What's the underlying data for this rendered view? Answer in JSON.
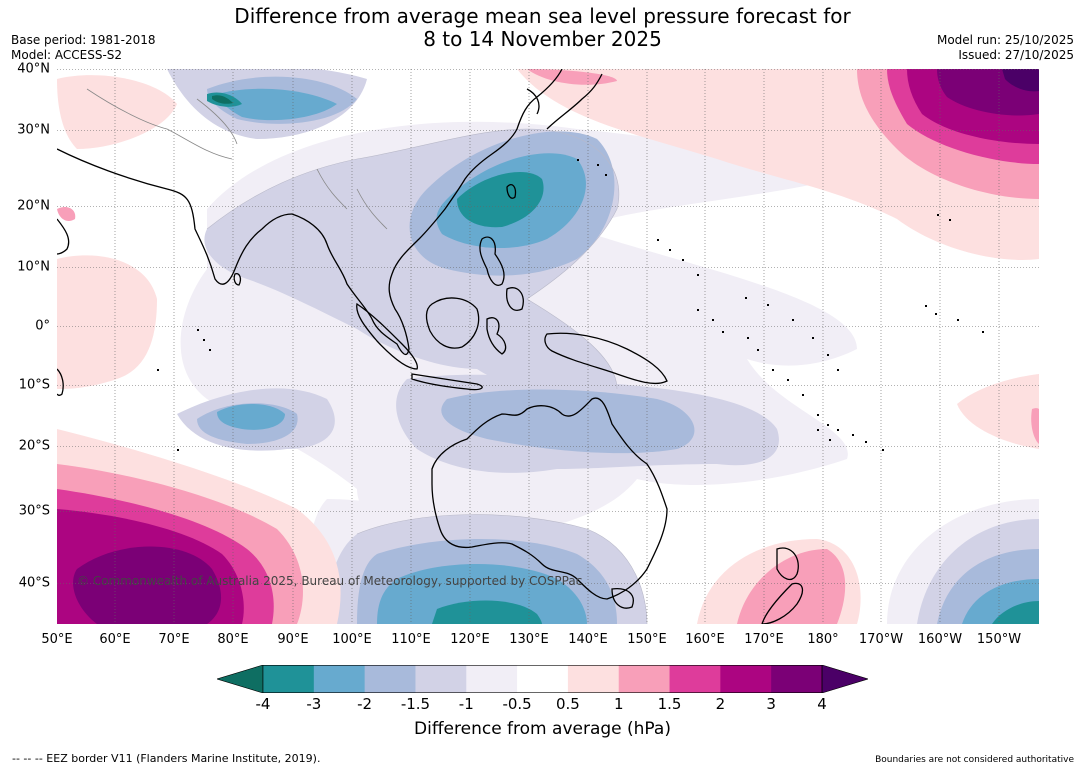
{
  "title": {
    "line1": "Difference from average mean sea level pressure forecast for",
    "line2": "8 to 14 November 2025"
  },
  "meta_left": {
    "base_period": "Base period: 1981-2018",
    "model": "Model: ACCESS-S2"
  },
  "meta_right": {
    "model_run": "Model run: 25/10/2025",
    "issued": "Issued: 27/10/2025"
  },
  "map": {
    "lon_labels": [
      "50°E",
      "60°E",
      "70°E",
      "80°E",
      "90°E",
      "100°E",
      "110°E",
      "120°E",
      "130°E",
      "140°E",
      "150°E",
      "160°E",
      "170°E",
      "180°",
      "170°W",
      "160°W",
      "150°W"
    ],
    "lat_labels": [
      "40°N",
      "30°N",
      "20°N",
      "10°N",
      "0°",
      "10°S",
      "20°S",
      "30°S",
      "40°S"
    ],
    "watermark": "© Commonwealth of Australia 2025, Bureau of Meteorology, supported by COSPPac"
  },
  "colorbar": {
    "colors": [
      "#0e6e62",
      "#1f9298",
      "#67aacf",
      "#a8badb",
      "#d2d2e6",
      "#f1eef6",
      "#ffffff",
      "#fde0e0",
      "#f89fb9",
      "#de3c9b",
      "#ac0581",
      "#7b0076",
      "#4b0067"
    ],
    "tick_labels": [
      "-4",
      "-3",
      "-2",
      "-1.5",
      "-1",
      "-0.5",
      "0.5",
      "1",
      "1.5",
      "2",
      "3",
      "4"
    ],
    "title": "Difference from average (hPa)"
  },
  "footer": {
    "eez_note": "--  --  -- EEZ border V11 (Flanders Marine Institute, 2019).",
    "boundaries_note": "Boundaries are not considered authoritative"
  },
  "chart_data": {
    "type": "heatmap",
    "title": "Difference from average mean sea level pressure forecast for 8 to 14 November 2025",
    "variable": "Mean sea level pressure anomaly",
    "units": "hPa",
    "lon_range": [
      "50°E",
      "145°W"
    ],
    "lat_range": [
      "45°S",
      "40°N"
    ],
    "levels": [
      -4,
      -3,
      -2,
      -1.5,
      -1,
      -0.5,
      0.5,
      1,
      1.5,
      2,
      3,
      4
    ],
    "features": [
      {
        "name": "Negative anomaly east of Philippines / Taiwan",
        "center": "125°E, 20°N",
        "min": "-3"
      },
      {
        "name": "Negative anomaly Himalaya / Tibetan plateau",
        "center": "85°E, 35°N",
        "min": "-4"
      },
      {
        "name": "Negative anomaly central Indian Ocean",
        "center": "84°E, 13°S",
        "min": "-2"
      },
      {
        "name": "Negative anomaly northern Australia",
        "center": "135°E, 15°S",
        "min": "-2"
      },
      {
        "name": "Negative anomaly south of Australia",
        "center": "120°E, 45°S",
        "min": "-3"
      },
      {
        "name": "Negative anomaly southeast Pacific",
        "center": "150°W, 45°S",
        "min": "-3"
      },
      {
        "name": "Positive anomaly North Pacific",
        "center": "150°W, 38°N",
        "min": "4"
      },
      {
        "name": "Positive anomaly southern Indian Ocean",
        "center": "70°E, 42°S",
        "min": "4"
      },
      {
        "name": "Positive anomaly Tasman Sea / New Zealand",
        "center": "172°E, 40°S",
        "min": "1.5"
      },
      {
        "name": "Positive anomaly near Fiji / Samoa",
        "center": "150°W, 15°S",
        "min": "1"
      }
    ]
  }
}
